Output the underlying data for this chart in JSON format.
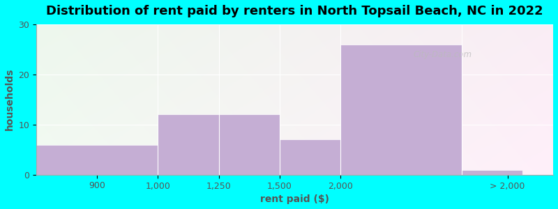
{
  "title": "Distribution of rent paid by renters in North Topsail Beach, NC in 2022",
  "xlabel": "rent paid ($)",
  "ylabel": "households",
  "background_color": "#00FFFF",
  "bar_color": "#c5aed4",
  "tick_labels": [
    "900",
    "1,000",
    "1,250",
    "1,500",
    "2,000",
    "> 2,000"
  ],
  "bar_heights": [
    6,
    12,
    12,
    7,
    26,
    1
  ],
  "bar_lefts": [
    0,
    2,
    3,
    4,
    5,
    7
  ],
  "bar_widths": [
    2,
    1,
    1,
    1,
    2,
    1
  ],
  "xtick_positions": [
    1.0,
    2.0,
    3.0,
    4.0,
    5.0,
    7.75
  ],
  "xlim": [
    0,
    8.5
  ],
  "ylim": [
    0,
    30
  ],
  "yticks": [
    0,
    10,
    20,
    30
  ],
  "title_fontsize": 13,
  "axis_label_fontsize": 10,
  "tick_fontsize": 9,
  "watermark": "City-Data.com"
}
